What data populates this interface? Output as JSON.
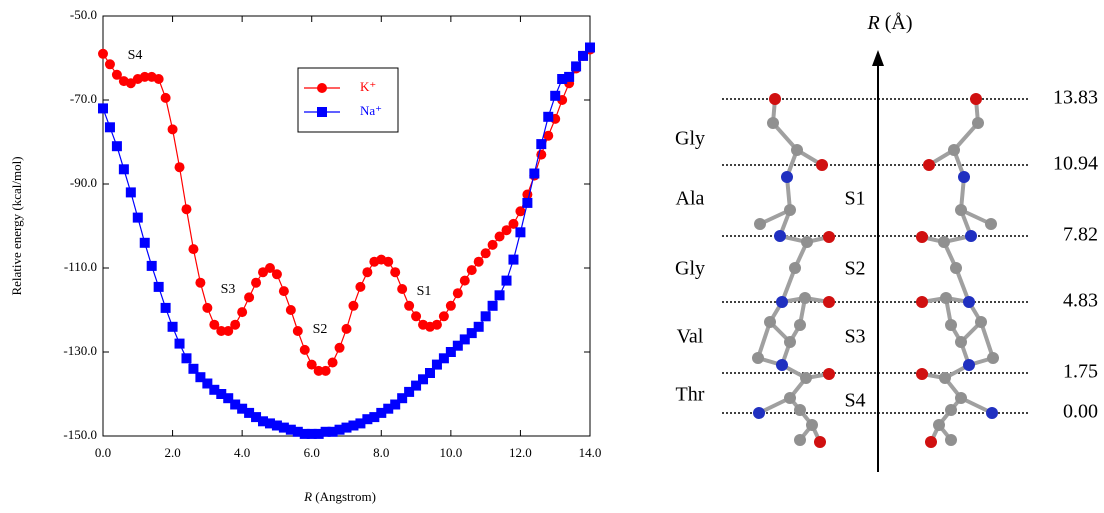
{
  "chart_data": {
    "type": "line",
    "y_label": "Relative energy (kcal/mol)",
    "x_label": {
      "symbol": "R",
      "unit": "(Angstrom)"
    },
    "annotations": [
      "S4",
      "S3",
      "S2",
      "S1"
    ],
    "x": [
      0.0,
      0.2,
      0.4,
      0.6,
      0.8,
      1.0,
      1.2,
      1.4,
      1.6,
      1.8,
      2.0,
      2.2,
      2.4,
      2.6,
      2.8,
      3.0,
      3.2,
      3.4,
      3.6,
      3.8,
      4.0,
      4.2,
      4.4,
      4.6,
      4.8,
      5.0,
      5.2,
      5.4,
      5.6,
      5.8,
      6.0,
      6.2,
      6.4,
      6.6,
      6.8,
      7.0,
      7.2,
      7.4,
      7.6,
      7.8,
      8.0,
      8.2,
      8.4,
      8.6,
      8.8,
      9.0,
      9.2,
      9.4,
      9.6,
      9.8,
      10.0,
      10.2,
      10.4,
      10.6,
      10.8,
      11.0,
      11.2,
      11.4,
      11.6,
      11.8,
      12.0,
      12.2,
      12.4,
      12.6,
      12.8,
      13.0,
      13.2,
      13.4,
      13.6,
      13.8,
      14.0
    ],
    "series": [
      {
        "name": "K⁺",
        "color": "#ff0000",
        "marker": "circle",
        "values": [
          -59,
          -61.5,
          -64,
          -65.5,
          -66,
          -65,
          -64.5,
          -64.5,
          -65,
          -69.5,
          -77,
          -86,
          -96,
          -105.5,
          -113.5,
          -119.5,
          -123.5,
          -125,
          -125,
          -123.5,
          -120.5,
          -117,
          -113.5,
          -111,
          -110,
          -111.5,
          -115.5,
          -120,
          -125,
          -129.5,
          -133,
          -134.5,
          -134.5,
          -132.5,
          -129,
          -124.5,
          -119,
          -114.5,
          -111,
          -108.5,
          -108,
          -108.5,
          -111,
          -115,
          -119,
          -121.5,
          -123.5,
          -124,
          -123.5,
          -121.5,
          -119,
          -116,
          -113,
          -110.5,
          -108.5,
          -106.5,
          -104.5,
          -102.5,
          -101,
          -99.5,
          -96.5,
          -92.5,
          -88,
          -83,
          -78.5,
          -74.5,
          -70,
          -66,
          -62.5,
          -59.5,
          -58
        ]
      },
      {
        "name": "Na⁺",
        "color": "#0000ff",
        "marker": "square",
        "values": [
          -72,
          -76.5,
          -81,
          -86.5,
          -92,
          -98,
          -104,
          -109.5,
          -114.5,
          -119.5,
          -124,
          -128,
          -131.5,
          -134,
          -136,
          -137.5,
          -139,
          -140,
          -141,
          -142.5,
          -143.5,
          -144.5,
          -145.5,
          -146.5,
          -147,
          -147.5,
          -148,
          -148.5,
          -149,
          -149.5,
          -149.5,
          -149.5,
          -149,
          -149,
          -148.5,
          -148,
          -147.5,
          -147,
          -146,
          -145.5,
          -144.5,
          -143.5,
          -142.5,
          -141,
          -139.5,
          -138,
          -136.5,
          -135,
          -133,
          -131.5,
          -130,
          -128.5,
          -127,
          -125.5,
          -124,
          -121.5,
          -119,
          -116.5,
          -113,
          -108,
          -101.5,
          -94.5,
          -87.5,
          -80.5,
          -74,
          -69,
          -65,
          -64.5,
          -62,
          -59.5,
          -57.5
        ]
      }
    ],
    "xlim": [
      0,
      14
    ],
    "ylim": [
      -150,
      -50
    ],
    "xticks": [
      {
        "value": 0,
        "label": "0.0"
      },
      {
        "value": 2,
        "label": "2.0"
      },
      {
        "value": 4,
        "label": "4.0"
      },
      {
        "value": 6,
        "label": "6.0"
      },
      {
        "value": 8,
        "label": "8.0"
      },
      {
        "value": 10,
        "label": "10.0"
      },
      {
        "value": 12,
        "label": "12.0"
      },
      {
        "value": 14,
        "label": "14.0"
      }
    ],
    "yticks": [
      {
        "value": -50,
        "label": "-50.0"
      },
      {
        "value": -70,
        "label": "-70.0"
      },
      {
        "value": -90,
        "label": "-90.0"
      },
      {
        "value": -110,
        "label": "-110.0"
      },
      {
        "value": -130,
        "label": "-130.0"
      },
      {
        "value": -150,
        "label": "-150.0"
      }
    ],
    "grid": false
  },
  "diagram": {
    "axis_label": {
      "symbol": "R",
      "unit": "(Å)"
    },
    "levels": [
      "13.83",
      "10.94",
      "7.82",
      "4.83",
      "1.75",
      "0.00"
    ],
    "residues": [
      "Gly",
      "Ala",
      "Gly",
      "Val",
      "Thr"
    ],
    "sites": [
      "S1",
      "S2",
      "S3",
      "S4"
    ]
  }
}
